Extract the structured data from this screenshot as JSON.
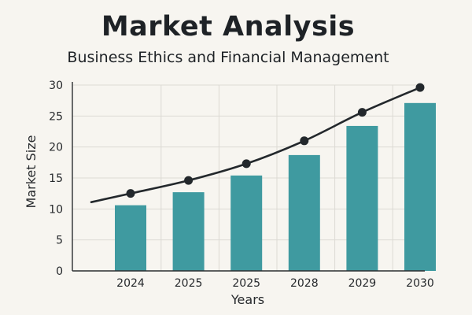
{
  "title": "Market Analysis",
  "subtitle": "Business Ethics and Financial Management",
  "colors": {
    "bar": "#3f9aa0",
    "line": "#23282c",
    "grid": "#dcdad4",
    "axis": "#2b2e31"
  },
  "chart_data": {
    "type": "bar",
    "title": "Market Analysis",
    "subtitle": "Business Ethics and Financial Management",
    "xlabel": "Years",
    "ylabel": "Market Size",
    "categories": [
      "2024",
      "2025",
      "2025",
      "2028",
      "2029",
      "2030"
    ],
    "ylim": [
      0,
      30
    ],
    "yticks": [
      0,
      5,
      10,
      15,
      20,
      25,
      30
    ],
    "grid": true,
    "series": [
      {
        "type": "bar",
        "values": [
          10.6,
          12.7,
          15.4,
          18.7,
          23.4,
          27.1
        ]
      },
      {
        "type": "line",
        "smooth": true,
        "start_value": 11.1,
        "values": [
          12.5,
          14.6,
          17.3,
          21.0,
          25.6,
          29.6
        ]
      }
    ]
  }
}
